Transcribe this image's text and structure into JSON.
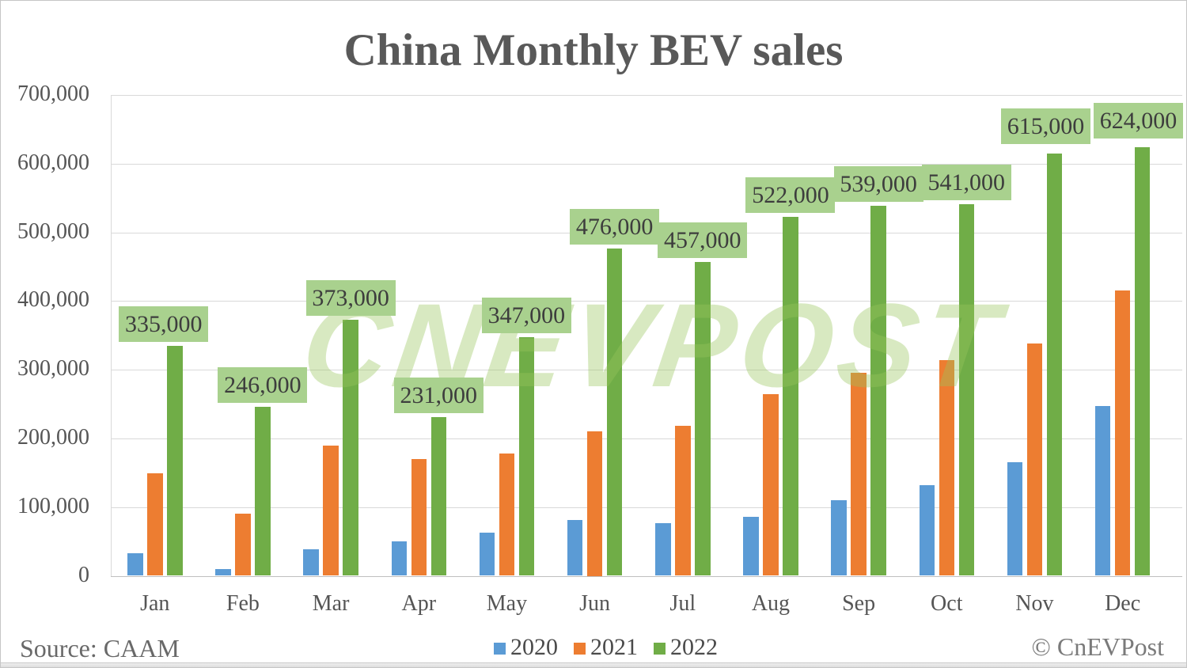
{
  "title": "China Monthly BEV sales",
  "watermark": {
    "text": "CNEVPOST"
  },
  "footer": {
    "source": "Source: CAAM",
    "copyright": "© CnEVPost"
  },
  "colors": {
    "series_2020": "#5B9BD5",
    "series_2021": "#ED7D31",
    "series_2022": "#70AD47",
    "data_label_bg": "#A9D18E",
    "gridline": "#D9D9D9",
    "axis_line": "#BFBFBF",
    "title_text": "#595959"
  },
  "chart_data": {
    "type": "bar",
    "title": "China Monthly BEV sales",
    "categories": [
      "Jan",
      "Feb",
      "Mar",
      "Apr",
      "May",
      "Jun",
      "Jul",
      "Aug",
      "Sep",
      "Oct",
      "Nov",
      "Dec"
    ],
    "series": [
      {
        "name": "2020",
        "color": "#5B9BD5",
        "values": [
          33000,
          10000,
          39000,
          50000,
          63000,
          81000,
          77000,
          86000,
          110000,
          132000,
          165000,
          247000
        ]
      },
      {
        "name": "2021",
        "color": "#ED7D31",
        "values": [
          149000,
          91000,
          189000,
          170000,
          178000,
          210000,
          218000,
          264000,
          295000,
          314000,
          338000,
          415000
        ]
      },
      {
        "name": "2022",
        "color": "#70AD47",
        "values": [
          335000,
          246000,
          373000,
          231000,
          347000,
          476000,
          457000,
          522000,
          539000,
          541000,
          615000,
          624000
        ],
        "data_labels": [
          "335,000",
          "246,000",
          "373,000",
          "231,000",
          "347,000",
          "476,000",
          "457,000",
          "522,000",
          "539,000",
          "541,000",
          "615,000",
          "624,000"
        ]
      }
    ],
    "xlabel": "",
    "ylabel": "",
    "ylim": [
      0,
      700000
    ],
    "y_ticks": [
      0,
      100000,
      200000,
      300000,
      400000,
      500000,
      600000,
      700000
    ],
    "y_tick_labels": [
      "0",
      "100,000",
      "200,000",
      "300,000",
      "400,000",
      "500,000",
      "600,000",
      "700,000"
    ],
    "grid": true,
    "legend_position": "bottom",
    "data_labels_series": "2022"
  }
}
